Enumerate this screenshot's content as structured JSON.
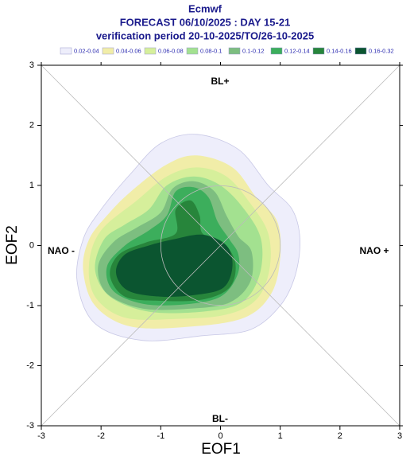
{
  "chart_data": {
    "type": "contour",
    "title": "Ecmwf",
    "subtitle": "FORECAST 06/10/2025 : DAY 15-21",
    "subtitle2": "verification period 20-10-2025/TO/26-10-2025",
    "xlabel": "EOF1",
    "ylabel": "EOF2",
    "xlim": [
      -3,
      3
    ],
    "ylim": [
      -3,
      3
    ],
    "xticks": [
      -3,
      -2,
      -1,
      0,
      1,
      2,
      3
    ],
    "yticks": [
      -3,
      -2,
      -1,
      0,
      1,
      2,
      3
    ],
    "annotations": [
      "BL+",
      "BL-",
      "NAO -",
      "NAO +"
    ],
    "series": [
      {
        "name": "0.02-0.04",
        "color": "#eeeefb",
        "x": [
          -1.5,
          -1.0,
          -0.4,
          0.3,
          0.8,
          1.2,
          1.33,
          1.25,
          1.0,
          0.5,
          -0.3,
          -1.3,
          -2.1,
          -2.4,
          -2.3,
          -2.0
        ],
        "y": [
          1.2,
          1.7,
          1.85,
          1.6,
          1.0,
          0.6,
          0.1,
          -0.5,
          -1.0,
          -1.4,
          -1.5,
          -1.58,
          -1.3,
          -0.6,
          0.1,
          0.6
        ]
      },
      {
        "name": "0.04-0.06",
        "color": "#f1eda8",
        "x": [
          -1.5,
          -0.9,
          -0.4,
          0.2,
          0.6,
          0.95,
          1.0,
          0.85,
          0.4,
          -0.5,
          -1.5,
          -2.1,
          -2.3,
          -2.2,
          -1.9
        ],
        "y": [
          0.9,
          1.35,
          1.5,
          1.3,
          0.8,
          0.4,
          -0.2,
          -0.8,
          -1.2,
          -1.35,
          -1.35,
          -1.0,
          -0.4,
          0.1,
          0.5
        ]
      },
      {
        "name": "0.06-0.08",
        "color": "#d6ef9b",
        "x": [
          -1.4,
          -0.9,
          -0.4,
          0.1,
          0.5,
          0.8,
          0.82,
          0.6,
          0.1,
          -0.7,
          -1.6,
          -2.1,
          -2.2,
          -2.0
        ],
        "y": [
          0.75,
          1.15,
          1.3,
          1.15,
          0.7,
          0.2,
          -0.4,
          -0.9,
          -1.15,
          -1.22,
          -1.2,
          -0.85,
          -0.3,
          0.25
        ]
      },
      {
        "name": "0.08-0.1",
        "color": "#a3e190",
        "x": [
          -1.2,
          -0.9,
          -0.45,
          0.0,
          0.4,
          0.68,
          0.65,
          0.35,
          -0.3,
          -1.2,
          -1.85,
          -2.1,
          -1.95,
          -1.6
        ],
        "y": [
          0.6,
          1.0,
          1.15,
          1.0,
          0.6,
          0.1,
          -0.5,
          -0.95,
          -1.1,
          -1.1,
          -0.85,
          -0.4,
          0.1,
          0.35
        ]
      },
      {
        "name": "0.1-0.12",
        "color": "#7dbe80",
        "x": [
          -1.0,
          -0.8,
          -0.45,
          -0.1,
          0.1,
          0.3,
          0.52,
          0.5,
          0.15,
          -0.5,
          -1.3,
          -1.9,
          -2.05,
          -1.8,
          -1.4
        ],
        "y": [
          0.55,
          0.95,
          1.07,
          0.9,
          0.5,
          0.15,
          -0.1,
          -0.6,
          -0.95,
          -1.05,
          -1.05,
          -0.8,
          -0.35,
          0.05,
          0.3
        ]
      },
      {
        "name": "0.12-0.14",
        "color": "#3cae5c",
        "x": [
          -0.9,
          -0.75,
          -0.45,
          -0.2,
          -0.05,
          0.15,
          0.3,
          0.28,
          0.0,
          -0.6,
          -1.3,
          -1.8,
          -1.9,
          -1.6,
          -1.2
        ],
        "y": [
          0.5,
          0.9,
          0.97,
          0.8,
          0.4,
          0.1,
          -0.15,
          -0.5,
          -0.85,
          -0.98,
          -0.97,
          -0.75,
          -0.35,
          0.0,
          0.25
        ]
      },
      {
        "name": "0.14-0.16",
        "color": "#27853b",
        "x": [
          -0.75,
          -0.75,
          -0.5,
          -0.35,
          -0.3,
          0.05,
          0.25,
          0.15,
          -0.3,
          -1.0,
          -1.6,
          -1.85,
          -1.7,
          -1.25
        ],
        "y": [
          0.2,
          0.6,
          0.75,
          0.5,
          0.2,
          0.05,
          -0.3,
          -0.7,
          -0.9,
          -0.92,
          -0.85,
          -0.5,
          -0.15,
          0.05
        ]
      },
      {
        "name": "0.16-0.32",
        "color": "#0b5530",
        "x": [
          -0.8,
          -0.3,
          0.1,
          0.2,
          0.05,
          -0.4,
          -1.0,
          -1.55,
          -1.75,
          -1.6,
          -1.2
        ],
        "y": [
          0.1,
          0.18,
          0.0,
          -0.35,
          -0.7,
          -0.82,
          -0.85,
          -0.75,
          -0.45,
          -0.15,
          0.0
        ]
      }
    ]
  }
}
